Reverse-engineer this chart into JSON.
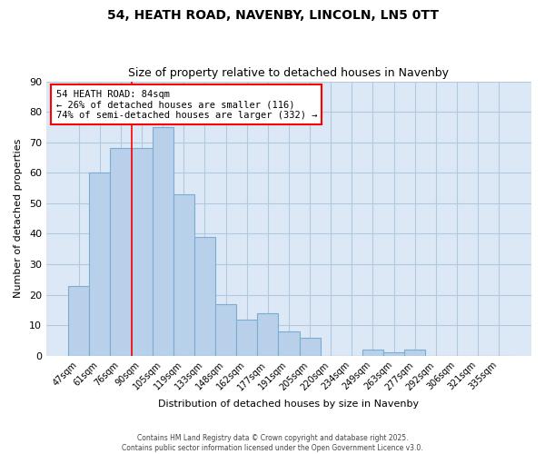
{
  "title": "54, HEATH ROAD, NAVENBY, LINCOLN, LN5 0TT",
  "subtitle": "Size of property relative to detached houses in Navenby",
  "xlabel": "Distribution of detached houses by size in Navenby",
  "ylabel": "Number of detached properties",
  "categories": [
    "47sqm",
    "61sqm",
    "76sqm",
    "90sqm",
    "105sqm",
    "119sqm",
    "133sqm",
    "148sqm",
    "162sqm",
    "177sqm",
    "191sqm",
    "205sqm",
    "220sqm",
    "234sqm",
    "249sqm",
    "263sqm",
    "277sqm",
    "292sqm",
    "306sqm",
    "321sqm",
    "335sqm"
  ],
  "values": [
    23,
    60,
    68,
    68,
    75,
    53,
    39,
    17,
    12,
    14,
    8,
    6,
    0,
    0,
    2,
    1,
    2,
    0,
    0,
    0,
    0
  ],
  "bar_color": "#b8d0ea",
  "bar_edge_color": "#7aadd4",
  "plot_bg_color": "#dce8f5",
  "figure_bg_color": "#ffffff",
  "grid_color": "#b0c8e0",
  "red_line_x": 2.5,
  "annotation_text": "54 HEATH ROAD: 84sqm\n← 26% of detached houses are smaller (116)\n74% of semi-detached houses are larger (332) →",
  "annotation_box_color": "white",
  "annotation_box_edge": "red",
  "ylim": [
    0,
    90
  ],
  "yticks": [
    0,
    10,
    20,
    30,
    40,
    50,
    60,
    70,
    80,
    90
  ],
  "footer_line1": "Contains HM Land Registry data © Crown copyright and database right 2025.",
  "footer_line2": "Contains public sector information licensed under the Open Government Licence v3.0."
}
